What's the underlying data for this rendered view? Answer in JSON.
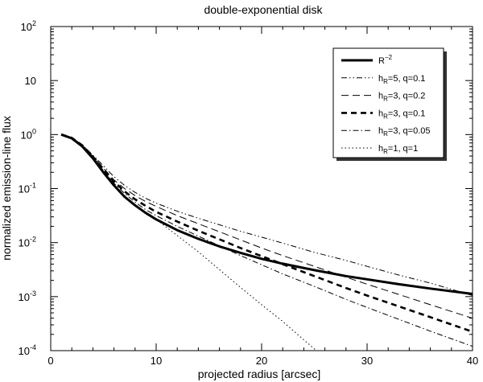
{
  "chart_data": {
    "type": "line",
    "title": "double-exponential disk",
    "xlabel": "projected radius [arcsec]",
    "ylabel": "normalized emission-line flux",
    "xlim": [
      0,
      40
    ],
    "ylim_log10": [
      -4,
      2
    ],
    "yscale": "log",
    "x_ticks": [
      "0",
      "10",
      "20",
      "30",
      "40"
    ],
    "y_ticks": [
      {
        "base": "10",
        "exp": "-4"
      },
      {
        "base": "10",
        "exp": "-3"
      },
      {
        "base": "10",
        "exp": "-2"
      },
      {
        "base": "10",
        "exp": "-1"
      },
      {
        "base": "10",
        "exp": "0"
      },
      {
        "base": "10",
        "exp": ""
      },
      {
        "base": "10",
        "exp": "2"
      }
    ],
    "legend_position": "top-right",
    "legend": [
      {
        "pre": "R",
        "sub": "",
        "sup": "−2",
        "post": ""
      },
      {
        "pre": "h",
        "sub": "R",
        "sup": "",
        "post": "=5, q=0.1"
      },
      {
        "pre": "h",
        "sub": "R",
        "sup": "",
        "post": "=3, q=0.2"
      },
      {
        "pre": "h",
        "sub": "R",
        "sup": "",
        "post": "=3, q=0.1"
      },
      {
        "pre": "h",
        "sub": "R",
        "sup": "",
        "post": "=3, q=0.05"
      },
      {
        "pre": "h",
        "sub": "R",
        "sup": "",
        "post": "=1, q=1"
      }
    ],
    "series": [
      {
        "style": "solid-thick",
        "x": [
          1,
          2,
          3,
          4,
          5,
          6,
          7,
          8,
          9,
          10,
          12,
          14,
          16,
          18,
          20,
          22,
          25,
          28,
          30,
          33,
          36,
          40
        ],
        "log10y": [
          0.0,
          -0.07,
          -0.22,
          -0.44,
          -0.7,
          -0.94,
          -1.15,
          -1.31,
          -1.45,
          -1.57,
          -1.77,
          -1.93,
          -2.07,
          -2.19,
          -2.3,
          -2.39,
          -2.51,
          -2.62,
          -2.68,
          -2.77,
          -2.85,
          -2.95
        ]
      },
      {
        "style": "dash-dot-dot",
        "x": [
          1,
          2,
          3,
          4,
          5,
          6,
          7,
          8,
          9,
          10,
          12,
          14,
          16,
          18,
          20,
          22,
          25,
          28,
          30,
          33,
          36,
          40
        ],
        "log10y": [
          0.0,
          -0.06,
          -0.19,
          -0.38,
          -0.58,
          -0.78,
          -0.94,
          -1.07,
          -1.18,
          -1.27,
          -1.42,
          -1.55,
          -1.67,
          -1.79,
          -1.9,
          -2.01,
          -2.18,
          -2.33,
          -2.44,
          -2.6,
          -2.75,
          -2.98
        ]
      },
      {
        "style": "long-dash",
        "x": [
          1,
          2,
          3,
          4,
          5,
          6,
          7,
          8,
          9,
          10,
          12,
          14,
          16,
          18,
          20,
          22,
          25,
          28,
          30,
          33,
          36,
          40
        ],
        "log10y": [
          0.0,
          -0.06,
          -0.2,
          -0.4,
          -0.62,
          -0.84,
          -1.0,
          -1.13,
          -1.24,
          -1.33,
          -1.5,
          -1.65,
          -1.8,
          -1.95,
          -2.1,
          -2.24,
          -2.44,
          -2.64,
          -2.77,
          -2.96,
          -3.15,
          -3.4
        ]
      },
      {
        "style": "dash-thick",
        "x": [
          1,
          2,
          3,
          4,
          5,
          6,
          7,
          8,
          9,
          10,
          12,
          14,
          16,
          18,
          20,
          22,
          25,
          28,
          30,
          33,
          36,
          40
        ],
        "log10y": [
          0.0,
          -0.06,
          -0.2,
          -0.41,
          -0.64,
          -0.87,
          -1.05,
          -1.2,
          -1.32,
          -1.43,
          -1.61,
          -1.78,
          -1.94,
          -2.1,
          -2.25,
          -2.4,
          -2.62,
          -2.84,
          -2.98,
          -3.18,
          -3.38,
          -3.65
        ]
      },
      {
        "style": "dash-dot",
        "x": [
          1,
          2,
          3,
          4,
          5,
          6,
          7,
          8,
          9,
          10,
          12,
          14,
          16,
          18,
          20,
          22,
          25,
          28,
          30,
          33,
          36,
          40
        ],
        "log10y": [
          0.0,
          -0.06,
          -0.2,
          -0.42,
          -0.66,
          -0.9,
          -1.09,
          -1.25,
          -1.39,
          -1.5,
          -1.7,
          -1.88,
          -2.06,
          -2.24,
          -2.41,
          -2.58,
          -2.81,
          -3.05,
          -3.2,
          -3.42,
          -3.64,
          -3.92
        ]
      },
      {
        "style": "dotted",
        "x": [
          1,
          2,
          3,
          4,
          5,
          6,
          7,
          8,
          9,
          10,
          12,
          14,
          16,
          18,
          20,
          22,
          24,
          25.2
        ],
        "log10y": [
          0.0,
          -0.07,
          -0.22,
          -0.44,
          -0.7,
          -0.94,
          -1.15,
          -1.31,
          -1.45,
          -1.57,
          -1.87,
          -2.17,
          -2.5,
          -2.83,
          -3.15,
          -3.46,
          -3.8,
          -4.0
        ]
      }
    ]
  }
}
